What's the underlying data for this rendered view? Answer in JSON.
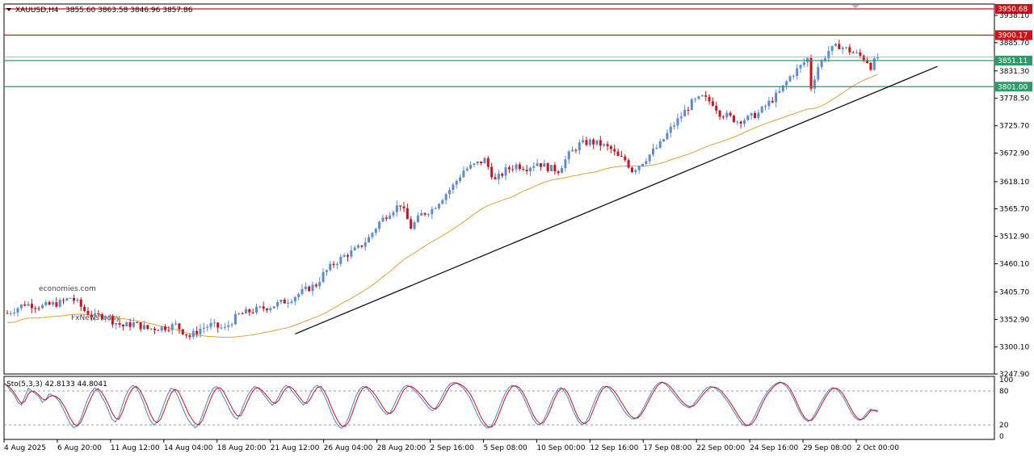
{
  "header": {
    "symbol": "XAUUSD,H4",
    "ohlc": "3855.60 3863.58 3846.96 3857.86"
  },
  "watermark": {
    "line1": "economies.com",
    "line2": "FxNewsToday"
  },
  "colors": {
    "bull": "#5b8bd6",
    "bear": "#d0101a",
    "ma": "#e0a030",
    "trendline": "#000000",
    "resistance": "#d0101a",
    "support": "#2e9a6a",
    "stoch_main": "#4a7fd0",
    "stoch_signal": "#d0101a"
  },
  "chart_data": [
    {
      "type": "candlestick",
      "title": "XAUUSD,H4",
      "ylim": [
        3247.9,
        3960.0
      ],
      "y_ticks": [
        3938.1,
        3885.7,
        3831.3,
        3778.5,
        3725.7,
        3672.9,
        3618.1,
        3565.7,
        3512.9,
        3460.1,
        3405.7,
        3352.9,
        3300.1,
        3247.9
      ],
      "y_tick_labels": [
        "3938.10",
        "3885.70",
        "3831.30",
        "3778.50",
        "3725.70",
        "3672.90",
        "3618.10",
        "3565.70",
        "3512.90",
        "3460.10",
        "3405.70",
        "3352.90",
        "3300.10",
        "3247.90"
      ],
      "x_tick_labels": [
        "4 Aug 2025",
        "6 Aug 20:00",
        "11 Aug 12:00",
        "14 Aug 04:00",
        "18 Aug 20:00",
        "21 Aug 12:00",
        "26 Aug 04:00",
        "28 Aug 20:00",
        "2 Sep 16:00",
        "5 Sep 08:00",
        "10 Sep 00:00",
        "12 Sep 16:00",
        "17 Sep 08:00",
        "22 Sep 00:00",
        "24 Sep 16:00",
        "29 Sep 08:00",
        "2 Oct 00:00"
      ],
      "close_path": [
        [
          0,
          3365
        ],
        [
          5,
          3383
        ],
        [
          10,
          3378
        ],
        [
          15,
          3385
        ],
        [
          18,
          3395
        ],
        [
          20,
          3385
        ],
        [
          22,
          3370
        ],
        [
          25,
          3358
        ],
        [
          28,
          3362
        ],
        [
          30,
          3350
        ],
        [
          33,
          3340
        ],
        [
          36,
          3345
        ],
        [
          40,
          3335
        ],
        [
          45,
          3338
        ],
        [
          48,
          3342
        ],
        [
          50,
          3330
        ],
        [
          52,
          3320
        ],
        [
          55,
          3335
        ],
        [
          58,
          3342
        ],
        [
          60,
          3338
        ],
        [
          62,
          3335
        ],
        [
          64,
          3350
        ],
        [
          66,
          3362
        ],
        [
          70,
          3370
        ],
        [
          75,
          3378
        ],
        [
          80,
          3390
        ],
        [
          85,
          3410
        ],
        [
          88,
          3420
        ],
        [
          90,
          3440
        ],
        [
          93,
          3460
        ],
        [
          96,
          3475
        ],
        [
          100,
          3490
        ],
        [
          103,
          3510
        ],
        [
          106,
          3540
        ],
        [
          109,
          3560
        ],
        [
          112,
          3575
        ],
        [
          115,
          3530
        ],
        [
          118,
          3555
        ],
        [
          121,
          3565
        ],
        [
          124,
          3588
        ],
        [
          127,
          3610
        ],
        [
          130,
          3640
        ],
        [
          133,
          3650
        ],
        [
          136,
          3660
        ],
        [
          139,
          3620
        ],
        [
          142,
          3640
        ],
        [
          145,
          3650
        ],
        [
          148,
          3645
        ],
        [
          151,
          3655
        ],
        [
          154,
          3645
        ],
        [
          157,
          3640
        ],
        [
          160,
          3670
        ],
        [
          163,
          3690
        ],
        [
          166,
          3695
        ],
        [
          169,
          3690
        ],
        [
          172,
          3680
        ],
        [
          174,
          3665
        ],
        [
          176,
          3660
        ],
        [
          178,
          3640
        ],
        [
          180,
          3650
        ],
        [
          183,
          3670
        ],
        [
          186,
          3690
        ],
        [
          189,
          3720
        ],
        [
          192,
          3745
        ],
        [
          195,
          3770
        ],
        [
          198,
          3780
        ],
        [
          201,
          3770
        ],
        [
          203,
          3750
        ],
        [
          205,
          3745
        ],
        [
          208,
          3735
        ],
        [
          211,
          3740
        ],
        [
          214,
          3750
        ],
        [
          217,
          3770
        ],
        [
          220,
          3790
        ],
        [
          223,
          3820
        ],
        [
          226,
          3840
        ],
        [
          228,
          3855
        ],
        [
          229,
          3800
        ],
        [
          231,
          3840
        ],
        [
          234,
          3870
        ],
        [
          237,
          3880
        ],
        [
          240,
          3870
        ],
        [
          243,
          3860
        ],
        [
          245,
          3850
        ],
        [
          246,
          3840
        ],
        [
          248,
          3858
        ]
      ],
      "resistance_levels": [
        {
          "value": 3950.68,
          "label": "3950.68"
        },
        {
          "value": 3900.17,
          "label": "3900.17"
        }
      ],
      "support_levels": [
        {
          "value": 3851.11,
          "label": "3851.11"
        },
        {
          "value": 3801.0,
          "label": "3801.00"
        }
      ],
      "current_price": 3857.86,
      "trendline": {
        "from": [
          82,
          3325
        ],
        "to": [
          265,
          3840
        ]
      }
    },
    {
      "type": "line",
      "title": "Sto(5,3,3) 42.8133 44.8041",
      "indicator_name": "Sto(5,3,3)",
      "main_value": "42.8133",
      "signal_value": "44.8041",
      "ylim": [
        0,
        100
      ],
      "y_ticks": [
        100,
        80,
        20,
        0
      ],
      "levels": [
        80,
        20
      ],
      "series": [
        {
          "name": "main",
          "values": [
            95,
            88,
            80,
            72,
            60,
            55,
            70,
            85,
            80,
            75,
            70,
            60,
            65,
            75,
            72,
            68,
            60,
            48,
            35,
            22,
            15,
            18,
            30,
            48,
            65,
            78,
            85,
            82,
            70,
            60,
            45,
            30,
            25,
            35,
            55,
            72,
            84,
            90,
            86,
            75,
            60,
            42,
            28,
            20,
            25,
            40,
            58,
            74,
            85,
            82,
            70,
            55,
            40,
            28,
            20,
            15,
            22,
            38,
            55,
            72,
            84,
            88,
            82,
            70,
            58,
            45,
            35,
            30,
            42,
            58,
            72,
            82,
            88,
            85,
            78,
            70,
            62,
            55,
            60,
            72,
            84,
            90,
            86,
            78,
            70,
            62,
            55,
            62,
            76,
            86,
            90,
            84,
            72,
            58,
            42,
            28,
            18,
            14,
            20,
            34,
            52,
            70,
            82,
            88,
            86,
            80,
            72,
            62,
            52,
            44,
            38,
            42,
            54,
            68,
            80,
            88,
            90,
            86,
            80,
            74,
            66,
            58,
            50,
            45,
            50,
            60,
            72,
            84,
            92,
            95,
            94,
            90,
            84,
            76,
            66,
            52,
            38,
            26,
            18,
            14,
            18,
            30,
            46,
            62,
            76,
            86,
            90,
            88,
            82,
            72,
            58,
            44,
            30,
            22,
            20,
            28,
            42,
            58,
            72,
            82,
            86,
            80,
            68,
            52,
            38,
            26,
            20,
            24,
            36,
            52,
            68,
            80,
            88,
            88,
            84,
            76,
            66,
            56,
            46,
            38,
            32,
            30,
            34,
            42,
            54,
            66,
            78,
            88,
            94,
            96,
            92,
            86,
            78,
            70,
            62,
            56,
            52,
            50,
            56,
            64,
            72,
            80,
            86,
            88,
            86,
            82,
            76,
            68,
            60,
            50,
            40,
            30,
            22,
            18,
            20,
            28,
            40,
            54,
            66,
            76,
            84,
            90,
            94,
            96,
            92,
            86,
            76,
            64,
            50,
            38,
            30,
            26,
            30,
            40,
            52,
            64,
            74,
            82,
            86,
            84,
            78,
            70,
            58,
            46,
            36,
            30,
            28,
            34,
            42,
            48,
            45,
            43
          ]
        },
        {
          "name": "signal",
          "values": [
            92,
            90,
            84,
            76,
            66,
            58,
            62,
            75,
            80,
            78,
            73,
            66,
            64,
            70,
            72,
            70,
            65,
            56,
            45,
            32,
            22,
            18,
            24,
            38,
            54,
            68,
            80,
            84,
            78,
            68,
            56,
            42,
            32,
            30,
            42,
            60,
            75,
            85,
            88,
            82,
            70,
            56,
            40,
            28,
            24,
            30,
            45,
            62,
            76,
            83,
            80,
            68,
            54,
            40,
            30,
            22,
            20,
            28,
            44,
            60,
            75,
            84,
            86,
            80,
            68,
            56,
            44,
            36,
            36,
            48,
            62,
            75,
            84,
            86,
            82,
            75,
            68,
            60,
            58,
            64,
            76,
            85,
            88,
            84,
            76,
            68,
            60,
            58,
            66,
            78,
            86,
            88,
            80,
            68,
            52,
            38,
            26,
            18,
            17,
            25,
            40,
            58,
            74,
            84,
            88,
            84,
            78,
            70,
            60,
            50,
            42,
            40,
            46,
            58,
            72,
            83,
            88,
            88,
            84,
            78,
            72,
            64,
            56,
            50,
            48,
            54,
            64,
            76,
            87,
            92,
            94,
            92,
            88,
            82,
            74,
            62,
            48,
            34,
            24,
            17,
            16,
            22,
            36,
            52,
            68,
            80,
            88,
            89,
            86,
            78,
            66,
            52,
            38,
            28,
            22,
            24,
            34,
            48,
            64,
            77,
            84,
            84,
            76,
            62,
            46,
            32,
            24,
            22,
            28,
            42,
            58,
            73,
            84,
            88,
            87,
            82,
            74,
            64,
            54,
            44,
            36,
            32,
            32,
            38,
            48,
            60,
            72,
            83,
            91,
            95,
            94,
            90,
            83,
            75,
            67,
            60,
            55,
            52,
            53,
            59,
            67,
            75,
            82,
            86,
            87,
            85,
            80,
            73,
            65,
            56,
            46,
            36,
            27,
            20,
            19,
            23,
            32,
            46,
            60,
            71,
            80,
            87,
            92,
            95,
            94,
            90,
            82,
            70,
            56,
            43,
            33,
            28,
            28,
            35,
            46,
            58,
            69,
            78,
            84,
            85,
            82,
            75,
            64,
            52,
            41,
            33,
            29,
            31,
            38,
            45,
            46,
            45
          ]
        }
      ]
    }
  ]
}
